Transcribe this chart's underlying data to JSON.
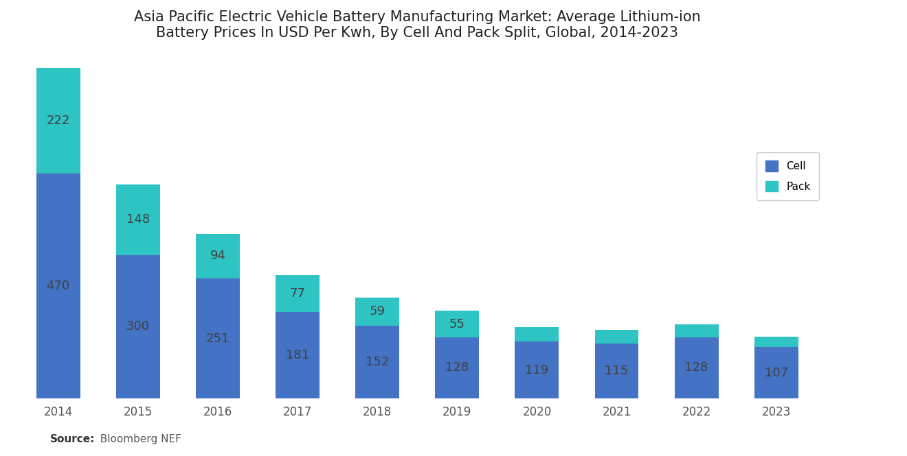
{
  "title": "Asia Pacific Electric Vehicle Battery Manufacturing Market: Average Lithium-ion\nBattery Prices In USD Per Kwh, By Cell And Pack Split, Global, 2014-2023",
  "years": [
    "2014",
    "2015",
    "2016",
    "2017",
    "2018",
    "2019",
    "2020",
    "2021",
    "2022",
    "2023"
  ],
  "cell_values": [
    470,
    300,
    251,
    181,
    152,
    128,
    119,
    115,
    128,
    107
  ],
  "pack_values": [
    222,
    148,
    94,
    77,
    59,
    55,
    30,
    28,
    27,
    22
  ],
  "pack_labels": [
    222,
    148,
    94,
    77,
    59,
    55,
    null,
    null,
    null,
    null
  ],
  "cell_color": "#4472C4",
  "pack_color": "#2EC4C4",
  "background_color": "#ffffff",
  "legend_cell": "Cell",
  "legend_pack": "Pack",
  "bar_width": 0.55,
  "ylim_max": 750,
  "title_fontsize": 15,
  "label_fontsize": 13,
  "tick_fontsize": 12,
  "source_bold": "Source:",
  "source_normal": "  Bloomberg NEF",
  "source_fontsize": 11,
  "text_color": "#404040"
}
